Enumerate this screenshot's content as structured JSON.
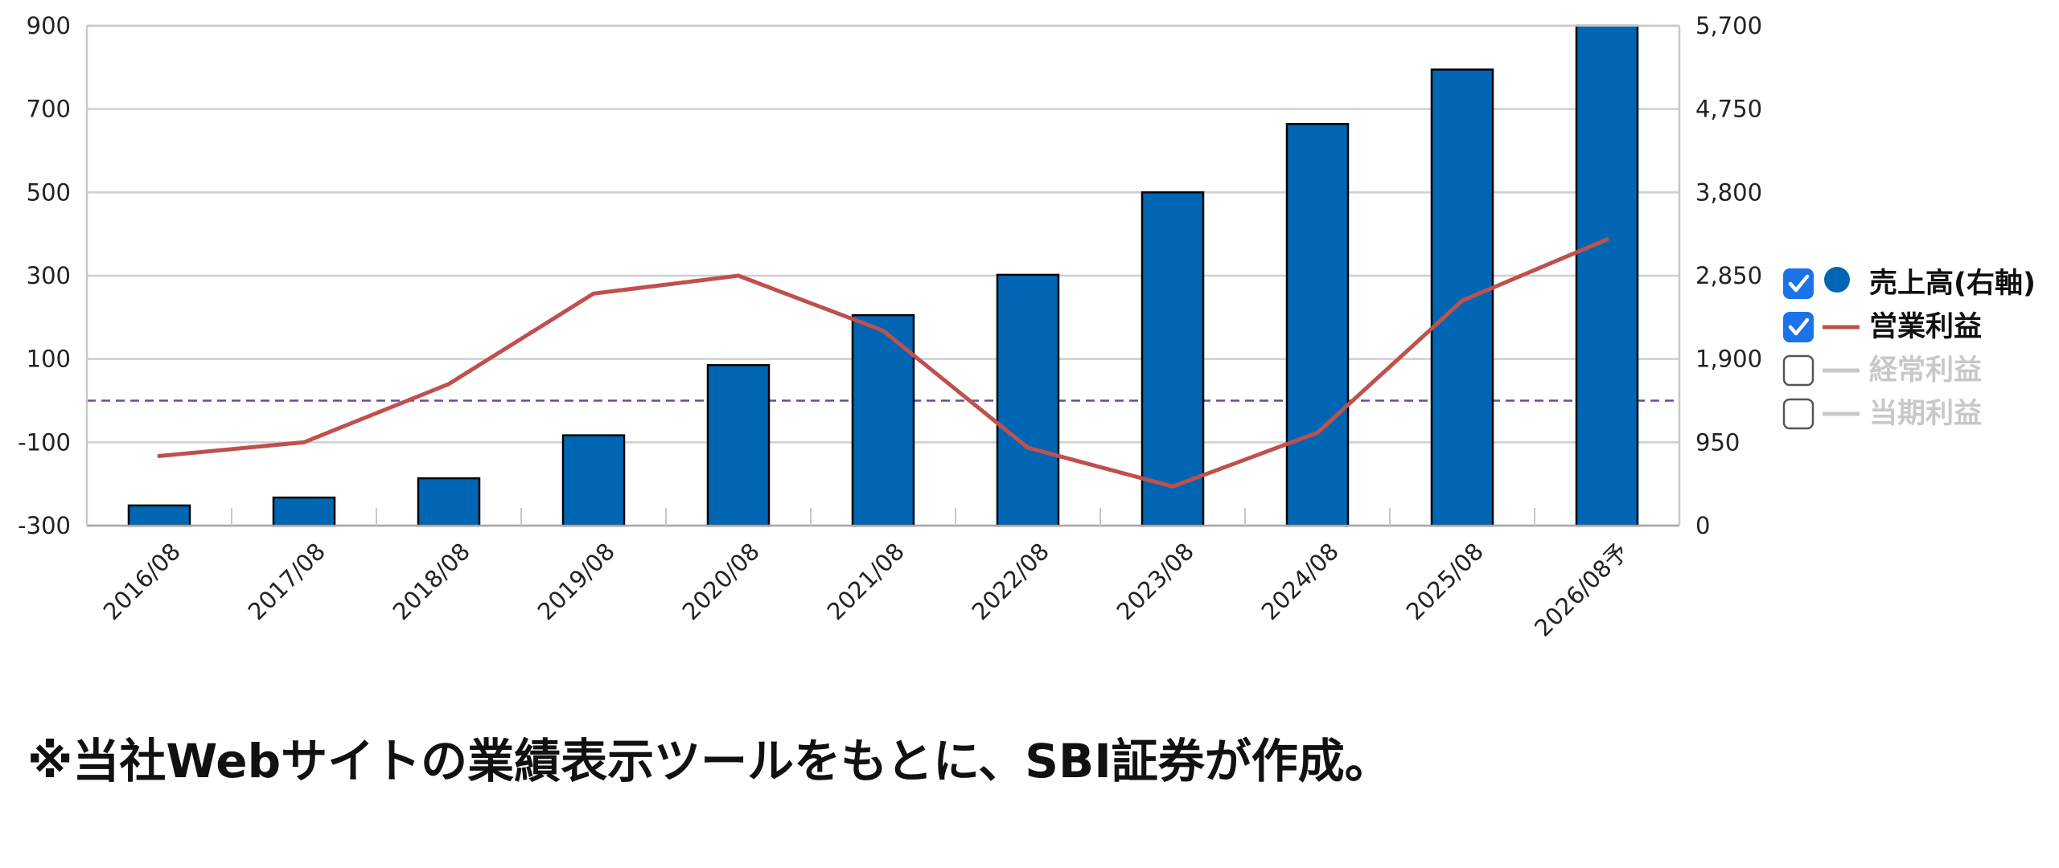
{
  "chart_data": {
    "type": "bar",
    "categories": [
      "2016/08",
      "2017/08",
      "2018/08",
      "2019/08",
      "2020/08",
      "2021/08",
      "2022/08",
      "2023/08",
      "2024/08",
      "2025/08",
      "2026/08予"
    ],
    "series": [
      {
        "name": "売上高(右軸)",
        "type": "bar",
        "axis": "right",
        "color": "#0066b3",
        "values": [
          230,
          320,
          540,
          1030,
          1830,
          2400,
          2860,
          3800,
          4580,
          5200,
          5700
        ]
      },
      {
        "name": "営業利益",
        "type": "line",
        "axis": "left",
        "color": "#c0504d",
        "values": [
          -133,
          -100,
          40,
          257,
          300,
          168,
          -113,
          -206,
          -77,
          240,
          387
        ]
      }
    ],
    "inactive_series": [
      {
        "name": "経常利益",
        "color": "#c8c8c8"
      },
      {
        "name": "当期利益",
        "color": "#c8c8c8"
      }
    ],
    "left_axis": {
      "ylim": [
        -300,
        900
      ],
      "ticks": [
        "900",
        "700",
        "500",
        "300",
        "100",
        "-100",
        "-300"
      ],
      "tick_values": [
        900,
        700,
        500,
        300,
        100,
        -100,
        -300
      ]
    },
    "right_axis": {
      "ylim": [
        0,
        5700
      ],
      "ticks": [
        "5,700",
        "4,750",
        "3,800",
        "2,850",
        "1,900",
        "950",
        "0"
      ],
      "tick_values": [
        5700,
        4750,
        3800,
        2850,
        1900,
        950,
        0
      ]
    },
    "reference_line": {
      "axis": "left",
      "value": 0,
      "style": "dashed",
      "color": "#6a4c93"
    },
    "grid": true,
    "legend_position": "right",
    "legend": [
      {
        "label": "売上高(右軸)",
        "checked": true,
        "marker": "dot",
        "color": "#0066b3",
        "active": true
      },
      {
        "label": "営業利益",
        "checked": true,
        "marker": "line",
        "color": "#c0504d",
        "active": true
      },
      {
        "label": "経常利益",
        "checked": false,
        "marker": "line",
        "color": "#c8c8c8",
        "active": false
      },
      {
        "label": "当期利益",
        "checked": false,
        "marker": "line",
        "color": "#c8c8c8",
        "active": false
      }
    ]
  },
  "footnote": "※当社Webサイトの業績表示ツールをもとに、SBI証券が作成。"
}
